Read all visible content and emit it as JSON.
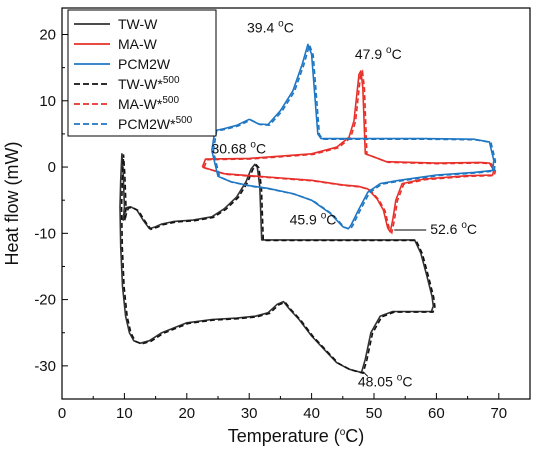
{
  "chart_data": {
    "type": "line",
    "xlabel": "Temperature (",
    "xlabel_sup": "o",
    "xlabel_end": "C)",
    "ylabel": "Heat flow (mW)",
    "xlim": [
      0,
      75
    ],
    "ylim": [
      -35,
      24
    ],
    "xticks": [
      0,
      10,
      20,
      30,
      40,
      50,
      60,
      70
    ],
    "yticks": [
      -30,
      -20,
      -10,
      0,
      10,
      20
    ],
    "grid": false,
    "legend_position": "top-left",
    "legend": [
      {
        "label": "TW-W",
        "sup": "",
        "color": "#333333",
        "style": "solid"
      },
      {
        "label": "MA-W",
        "sup": "",
        "color": "#e8302a",
        "style": "solid"
      },
      {
        "label": "PCM2W",
        "sup": "",
        "color": "#1f77c4",
        "style": "solid"
      },
      {
        "label": "TW-W*",
        "sup": "500",
        "color": "#111111",
        "style": "dashed"
      },
      {
        "label": "MA-W*",
        "sup": "500",
        "color": "#e8302a",
        "style": "dashed"
      },
      {
        "label": "PCM2W*",
        "sup": "500",
        "color": "#1f77c4",
        "style": "dashed"
      }
    ],
    "annotations": [
      {
        "text": "39.4 ",
        "sup": "o",
        "tail": "C",
        "x": 39.4,
        "y": 18.5
      },
      {
        "text": "47.9 ",
        "sup": "o",
        "tail": "C",
        "x": 47.9,
        "y": 14.5
      },
      {
        "text": "30.68 ",
        "sup": "o",
        "tail": "C",
        "x": 30.68,
        "y": 0.5
      },
      {
        "text": "45.9 ",
        "sup": "o",
        "tail": "C",
        "x": 45.9,
        "y": -9.3
      },
      {
        "text": "52.6 ",
        "sup": "o",
        "tail": "C",
        "x": 52.6,
        "y": -9.8
      },
      {
        "text": "48.05 ",
        "sup": "o",
        "tail": "C",
        "x": 48.05,
        "y": -31
      }
    ],
    "series": [
      {
        "key": "tw",
        "color": "#333333",
        "x": [
          10,
          9.8,
          10.1,
          10.4,
          11.0,
          12.0,
          13.0,
          14.0,
          15.0,
          16.0,
          18.0,
          21.0,
          24.0,
          26.0,
          28.0,
          29.5,
          30.3,
          30.9,
          31.3,
          31.7,
          32.0,
          33.0,
          36.0,
          40.0,
          45.0,
          50.0,
          54.0,
          56.5,
          57.5,
          58.5,
          59.3,
          59.5,
          59.2,
          57.0,
          55.0,
          53.0,
          51.0,
          49.5,
          48.6,
          48.0,
          46.0,
          44.0,
          42.0,
          40.0,
          38.0,
          36.5,
          35.5,
          34.5,
          33.0,
          31.0,
          28.0,
          24.0,
          20.0,
          16.0,
          14.0,
          12.5,
          11.5,
          10.8,
          10.2,
          9.7,
          9.4,
          9.3,
          9.4,
          9.6,
          9.8,
          10.0
        ],
        "y": [
          -6.0,
          -8.0,
          -6.8,
          -6.1,
          -6.0,
          -6.5,
          -8.0,
          -9.3,
          -9.0,
          -8.6,
          -8.2,
          -8.0,
          -7.5,
          -6.3,
          -4.5,
          -2.2,
          -0.3,
          0.4,
          0.0,
          -3.0,
          -11.0,
          -11.0,
          -11.0,
          -11.0,
          -11.0,
          -11.0,
          -11.0,
          -11.0,
          -13.0,
          -16.5,
          -19.5,
          -21.0,
          -21.8,
          -21.8,
          -21.8,
          -21.8,
          -22.5,
          -25.0,
          -29.0,
          -31.0,
          -30.5,
          -29.5,
          -27.5,
          -25.5,
          -23.0,
          -21.5,
          -20.3,
          -20.7,
          -22.0,
          -22.5,
          -22.8,
          -23.0,
          -23.5,
          -25.0,
          -26.2,
          -26.6,
          -26.2,
          -25.0,
          -22.5,
          -18.0,
          -12.0,
          -6.0,
          -2.0,
          2.0,
          -1.0,
          -6.0
        ]
      },
      {
        "key": "ma",
        "color": "#e8302a",
        "x": [
          22.5,
          23.0,
          30.0,
          40.0,
          44.0,
          46.0,
          46.8,
          47.3,
          47.6,
          47.9,
          48.2,
          48.6,
          52.0,
          60.0,
          67.0,
          68.5,
          69.2,
          69.0,
          65.0,
          58.0,
          54.5,
          53.5,
          53.0,
          52.6,
          52.2,
          51.5,
          50.5,
          49.0,
          47.5,
          45.0,
          40.0,
          33.0,
          26.0,
          22.5
        ],
        "y": [
          0.0,
          1.2,
          1.3,
          2.0,
          3.0,
          4.5,
          7.0,
          11.5,
          14.0,
          14.5,
          12.0,
          2.0,
          0.8,
          0.6,
          0.7,
          0.6,
          -0.5,
          -1.2,
          -1.3,
          -1.8,
          -2.5,
          -5.0,
          -8.0,
          -9.8,
          -9.2,
          -6.5,
          -4.8,
          -3.3,
          -2.9,
          -2.7,
          -2.0,
          -1.5,
          -1.0,
          0.0
        ]
      },
      {
        "key": "pcm",
        "color": "#1f77c4",
        "x": [
          24.0,
          24.5,
          26.0,
          28.0,
          30.0,
          31.5,
          33.0,
          35.0,
          37.0,
          38.5,
          39.4,
          40.0,
          40.5,
          41.0,
          41.5,
          48.0,
          58.0,
          66.0,
          68.5,
          69.2,
          69.0,
          66.0,
          60.0,
          54.0,
          51.0,
          49.0,
          47.5,
          46.3,
          45.9,
          45.0,
          43.0,
          40.0,
          37.0,
          33.0,
          30.0,
          27.0,
          25.0,
          24.0
        ],
        "y": [
          2.5,
          5.5,
          5.8,
          6.3,
          7.2,
          6.5,
          6.4,
          8.5,
          11.5,
          15.5,
          18.5,
          17.0,
          11.0,
          5.0,
          4.3,
          4.3,
          4.3,
          4.2,
          3.8,
          1.0,
          -0.5,
          -0.8,
          -1.2,
          -2.0,
          -2.5,
          -3.8,
          -6.5,
          -8.8,
          -9.3,
          -9.0,
          -7.0,
          -5.0,
          -4.0,
          -3.2,
          -2.8,
          -2.2,
          -1.4,
          2.5
        ]
      }
    ]
  }
}
